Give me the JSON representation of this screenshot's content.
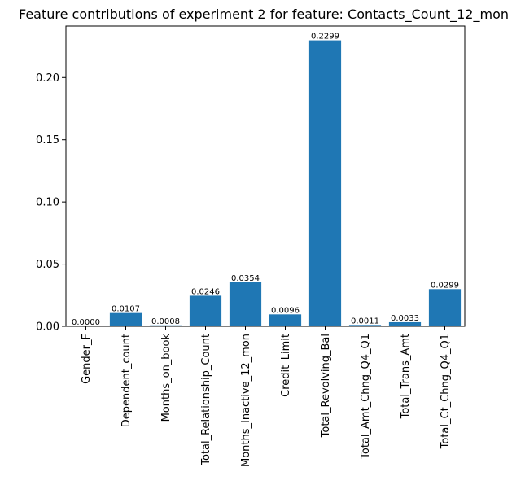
{
  "chart_data": {
    "type": "bar",
    "title": "Feature contributions of experiment 2 for feature: Contacts_Count_12_mon",
    "xlabel": "",
    "ylabel": "",
    "categories": [
      "Gender_F",
      "Dependent_count",
      "Months_on_book",
      "Total_Relationship_Count",
      "Months_Inactive_12_mon",
      "Credit_Limit",
      "Total_Revolving_Bal",
      "Total_Amt_Chng_Q4_Q1",
      "Total_Trans_Amt",
      "Total_Ct_Chng_Q4_Q1"
    ],
    "values": [
      0.0,
      0.0107,
      0.0008,
      0.0246,
      0.0354,
      0.0096,
      0.2299,
      0.0011,
      0.0033,
      0.0299
    ],
    "value_labels": [
      "0.0000",
      "0.0107",
      "0.0008",
      "0.0246",
      "0.0354",
      "0.0096",
      "0.2299",
      "0.0011",
      "0.0033",
      "0.0299"
    ],
    "ylim": [
      0,
      0.2414
    ],
    "yticks": [
      0.0,
      0.05,
      0.1,
      0.15,
      0.2
    ],
    "ytick_labels": [
      "0.00",
      "0.05",
      "0.10",
      "0.15",
      "0.20"
    ],
    "grid": false,
    "legend": "none",
    "colors": {
      "bar": "#1f77b4",
      "axis": "#000000",
      "text": "#000000",
      "background": "#ffffff"
    }
  }
}
